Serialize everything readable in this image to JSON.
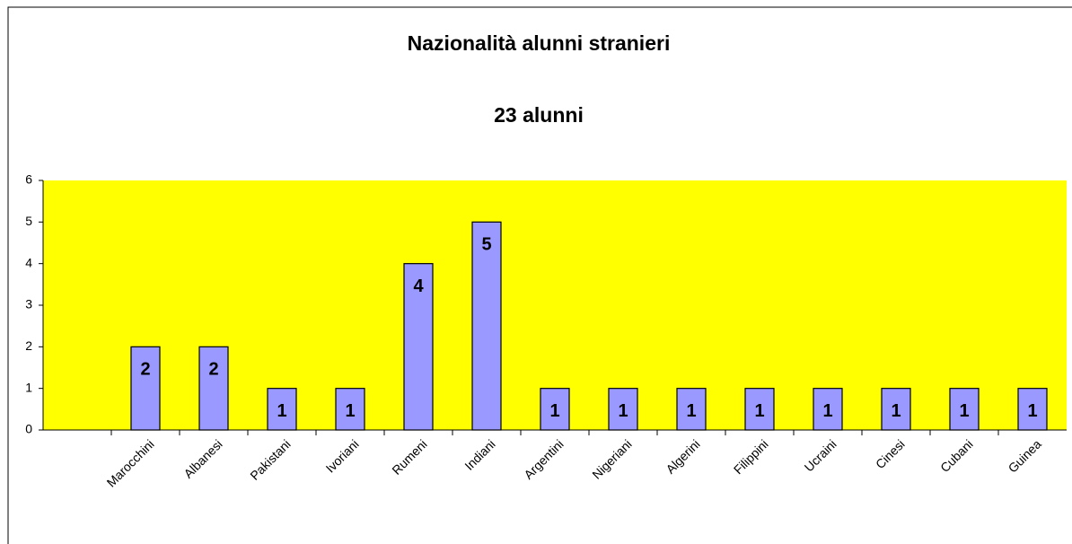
{
  "chart_data": {
    "type": "bar",
    "title": "Nazionalità alunni stranieri",
    "subtitle": "23 alunni",
    "categories": [
      null,
      "Marocchini",
      "Albanesi",
      "Pakistani",
      "Ivoriani",
      "Rumeni",
      "Indiani",
      "Argentini",
      "Nigeriani",
      "Algerini",
      "Filippini",
      "Ucraini",
      "Cinesi",
      "Cubani",
      "Guinea"
    ],
    "values": [
      null,
      2,
      2,
      1,
      1,
      4,
      5,
      1,
      1,
      1,
      1,
      1,
      1,
      1,
      1
    ],
    "color": "#9999ff",
    "plot_background": "#ffff00",
    "ylim": [
      0,
      6
    ],
    "yticks": [
      0,
      1,
      2,
      3,
      4,
      5,
      6
    ],
    "grid": false
  }
}
